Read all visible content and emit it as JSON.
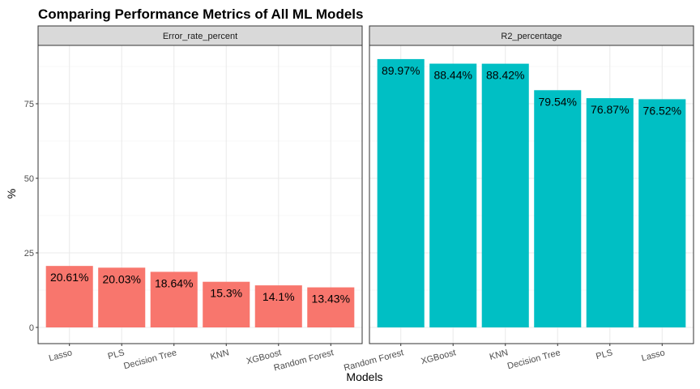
{
  "chart_data": {
    "type": "bar",
    "title": "Comparing Performance Metrics of All ML Models",
    "xlabel": "Models",
    "ylabel": "%",
    "ylim": [
      0,
      100
    ],
    "yticks": [
      0,
      25,
      50,
      75
    ],
    "grid": true,
    "legend": "none",
    "panels": [
      {
        "name": "Error_rate_percent",
        "color": "#F8766D",
        "categories": [
          "Lasso",
          "PLS",
          "Decision Tree",
          "KNN",
          "XGBoost",
          "Random Forest"
        ],
        "values": [
          20.61,
          20.03,
          18.64,
          15.3,
          14.1,
          13.43
        ],
        "labels": [
          "20.61%",
          "20.03%",
          "18.64%",
          "15.3%",
          "14.1%",
          "13.43%"
        ]
      },
      {
        "name": "R2_percentage",
        "color": "#00BFC4",
        "categories": [
          "Random Forest",
          "XGBoost",
          "KNN",
          "Decision Tree",
          "PLS",
          "Lasso"
        ],
        "values": [
          89.97,
          88.44,
          88.42,
          79.54,
          76.87,
          76.52
        ],
        "labels": [
          "89.97%",
          "88.44%",
          "88.42%",
          "79.54%",
          "76.87%",
          "76.52%"
        ]
      }
    ]
  }
}
